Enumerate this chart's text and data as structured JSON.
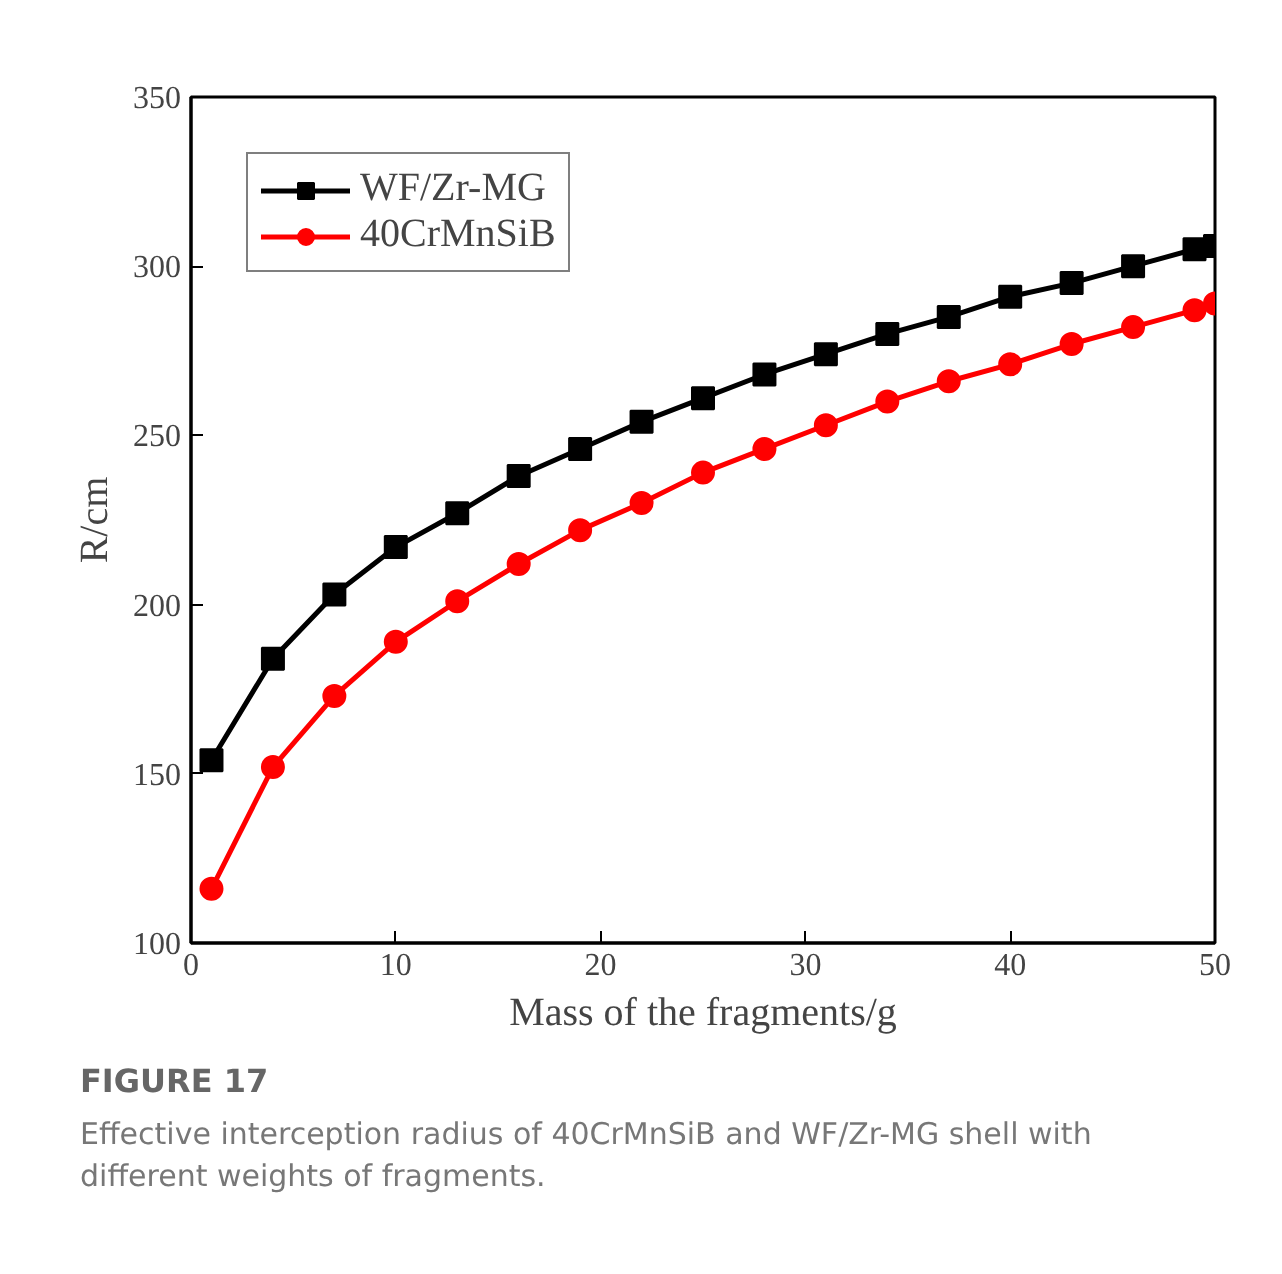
{
  "chart_data": {
    "type": "line",
    "xlabel": "Mass of the fragments/g",
    "ylabel": "R/cm",
    "x": [
      1,
      4,
      7,
      10,
      13,
      16,
      19,
      22,
      25,
      28,
      31,
      34,
      37,
      40,
      43,
      46,
      49,
      50
    ],
    "series": [
      {
        "name": "WF/Zr-MG",
        "color": "#000000",
        "marker": "square",
        "values": [
          154,
          184,
          203,
          217,
          227,
          238,
          246,
          254,
          261,
          268,
          274,
          280,
          285,
          291,
          295,
          300,
          305,
          306
        ]
      },
      {
        "name": "40CrMnSiB",
        "color": "#ff0000",
        "marker": "circle",
        "values": [
          116,
          152,
          173,
          189,
          201,
          212,
          222,
          230,
          239,
          246,
          253,
          260,
          266,
          271,
          277,
          282,
          287,
          289
        ]
      }
    ],
    "xlim": [
      0,
      50
    ],
    "xticks": [
      0,
      10,
      20,
      30,
      40,
      50
    ],
    "ylim": [
      100,
      350
    ],
    "yticks": [
      100,
      150,
      200,
      250,
      300,
      350
    ],
    "grid": false,
    "legend": "top left",
    "line_style": "solid",
    "annotations": [
      "FIGURE 17",
      "Effective interception radius of 40CrMnSiB and WF/Zr-MG shell with different weights of fragments."
    ]
  }
}
